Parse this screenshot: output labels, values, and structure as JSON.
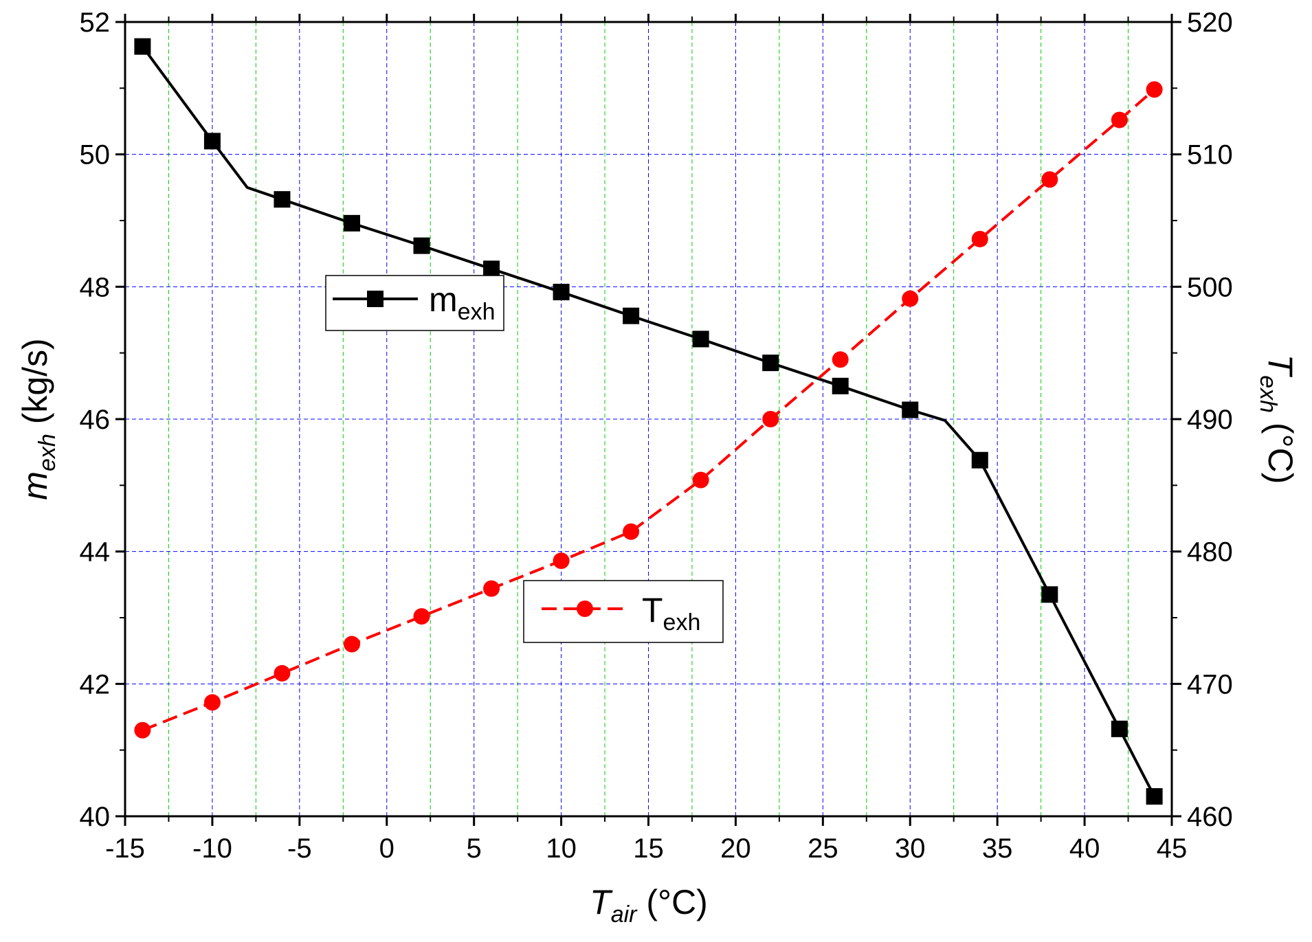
{
  "chart_data": {
    "type": "line",
    "x_axis": {
      "label": "T",
      "label_sub": "air",
      "label_unit": " (°C)",
      "range": [
        -15,
        45
      ],
      "ticks": [
        -15,
        -10,
        -5,
        0,
        5,
        10,
        15,
        20,
        25,
        30,
        35,
        40,
        45
      ],
      "tick_labels": [
        "-15",
        "-10",
        "-5",
        "0",
        "5",
        "10",
        "15",
        "20",
        "25",
        "30",
        "35",
        "40",
        "45"
      ]
    },
    "y_axis_left": {
      "label": "m",
      "label_sub": "exh",
      "label_unit": " (kg/s)",
      "range": [
        40,
        52
      ],
      "ticks": [
        40,
        42,
        44,
        46,
        48,
        50,
        52
      ],
      "tick_labels": [
        "40",
        "42",
        "44",
        "46",
        "48",
        "50",
        "52"
      ]
    },
    "y_axis_right": {
      "label": "T",
      "label_sub": "exh",
      "label_unit": " (°C)",
      "range": [
        460,
        520
      ],
      "ticks": [
        460,
        470,
        480,
        490,
        500,
        510,
        520
      ],
      "tick_labels": [
        "460",
        "470",
        "480",
        "490",
        "500",
        "510",
        "520"
      ]
    },
    "grid": true,
    "series": [
      {
        "name": "m",
        "name_sub": "exh",
        "axis": "left",
        "color": "#000000",
        "marker": "square",
        "line_style": "solid",
        "x": [
          -14,
          -10,
          -6,
          -2,
          2,
          6,
          10,
          14,
          18,
          22,
          26,
          30,
          34,
          38,
          42,
          44
        ],
        "y": [
          51.63,
          50.2,
          49.32,
          48.96,
          48.62,
          48.27,
          47.92,
          47.56,
          47.21,
          46.85,
          46.5,
          46.14,
          45.38,
          43.35,
          41.32,
          40.3
        ],
        "line_x": [
          -14,
          -10,
          -8,
          -6,
          -2,
          2,
          6,
          10,
          14,
          18,
          22,
          26,
          30,
          32,
          34,
          38,
          42,
          44
        ],
        "line_y": [
          51.63,
          50.2,
          49.5,
          49.32,
          48.96,
          48.62,
          48.27,
          47.92,
          47.56,
          47.21,
          46.85,
          46.5,
          46.14,
          45.98,
          45.38,
          43.35,
          41.32,
          40.3
        ]
      },
      {
        "name": "T",
        "name_sub": "exh",
        "axis": "right",
        "color": "#ff0000",
        "marker": "circle",
        "line_style": "dashed",
        "x": [
          -14,
          -10,
          -6,
          -2,
          2,
          6,
          10,
          14,
          18,
          22,
          26,
          30,
          34,
          38,
          42,
          44
        ],
        "y": [
          466.5,
          468.6,
          470.8,
          473.0,
          475.1,
          477.2,
          479.3,
          481.5,
          485.4,
          490.0,
          494.5,
          499.1,
          503.6,
          508.1,
          512.6,
          514.9
        ]
      }
    ],
    "legend": [
      {
        "series": 0,
        "position": "upper-left"
      },
      {
        "series": 1,
        "position": "lower-middle"
      }
    ],
    "colors": {
      "grid_major": "#0000ff",
      "grid_minor": "#00cc00"
    }
  }
}
